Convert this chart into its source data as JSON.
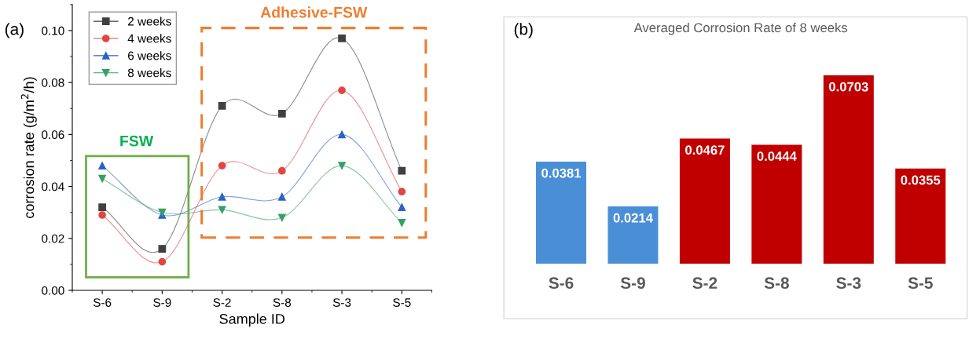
{
  "chart_data": [
    {
      "type": "line",
      "xlabel": "Sample ID",
      "ylabel": "corrosion rate (g/m$^{2}$/h)",
      "categories": [
        "S-6",
        "S-9",
        "S-2",
        "S-8",
        "S-3",
        "S-5"
      ],
      "series": [
        {
          "name": "2 weeks",
          "color": "#404040",
          "marker": "square",
          "values": [
            0.032,
            0.016,
            0.071,
            0.068,
            0.097,
            0.046
          ]
        },
        {
          "name": "4 weeks",
          "color": "#e04646",
          "marker": "circle",
          "values": [
            0.029,
            0.011,
            0.048,
            0.046,
            0.077,
            0.038
          ]
        },
        {
          "name": "6 weeks",
          "color": "#2a63c8",
          "marker": "triangle",
          "values": [
            0.048,
            0.029,
            0.036,
            0.036,
            0.06,
            0.032
          ]
        },
        {
          "name": "8 weeks",
          "color": "#35a065",
          "marker": "triangle_down",
          "values": [
            0.043,
            0.03,
            0.031,
            0.028,
            0.048,
            0.026
          ]
        }
      ],
      "ylim": [
        0,
        0.11
      ],
      "yticks": [
        {
          "value": 0,
          "label": "0.00"
        },
        {
          "value": 0.02,
          "label": "0.02"
        },
        {
          "value": 0.04,
          "label": "0.04"
        },
        {
          "value": 0.06,
          "label": "0.06"
        },
        {
          "value": 0.08,
          "label": "0.08"
        },
        {
          "value": 0.1,
          "label": "0.10"
        }
      ],
      "grid": false,
      "legend": "top left",
      "annotations": [
        "(a)",
        "FSW",
        "Adhesive-FSW"
      ]
    },
    {
      "type": "bar",
      "title": "Averaged Corrosion Rate of 8 weeks",
      "categories": [
        "S-6",
        "S-9",
        "S-2",
        "S-8",
        "S-3",
        "S-5"
      ],
      "values": [
        0.0381,
        0.0214,
        0.0467,
        0.0444,
        0.0703,
        0.0355
      ],
      "colors": [
        "#4a8fd6",
        "#4a8fd6",
        "#c00000",
        "#c00000",
        "#c00000",
        "#c00000"
      ],
      "data_labels": true,
      "annotations": [
        "(b)"
      ]
    }
  ]
}
